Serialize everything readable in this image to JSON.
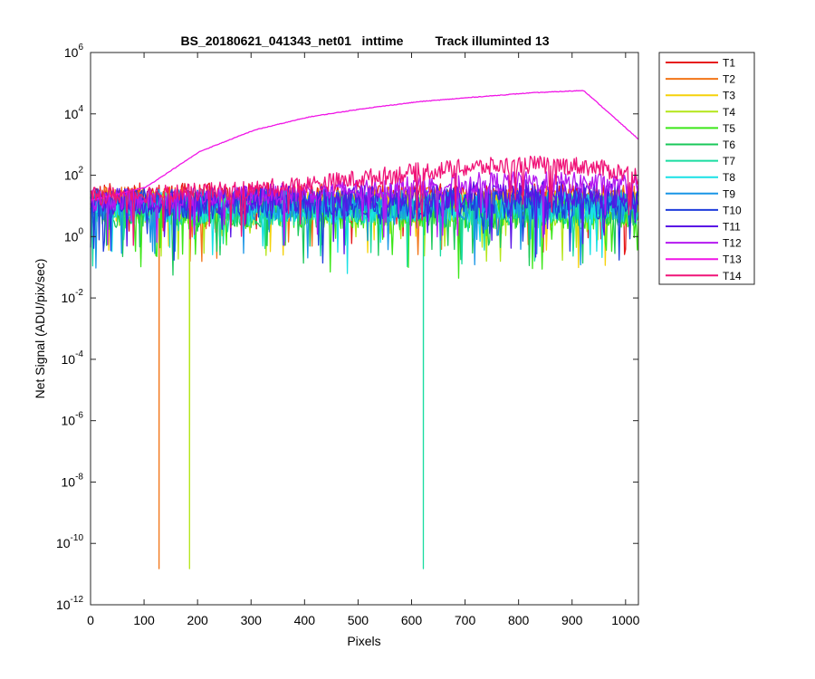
{
  "chart_data": {
    "type": "line",
    "title": "BS_20180621_041343_net01   inttime         Track illuminted 13",
    "xlabel": "Pixels",
    "ylabel": "Net Signal (ADU/pix/sec)",
    "xlim": [
      0,
      1024
    ],
    "ylim": [
      1e-12,
      1000000
    ],
    "y_scale": "log",
    "grid": false,
    "legend_placement": "outside-top-right",
    "x_ticks": [
      "0",
      "100",
      "200",
      "300",
      "400",
      "500",
      "600",
      "700",
      "800",
      "900",
      "1000"
    ],
    "y_ticks": [
      {
        "base": "10",
        "exp": "-12",
        "value": -12
      },
      {
        "base": "10",
        "exp": "-10",
        "value": -10
      },
      {
        "base": "10",
        "exp": "-8",
        "value": -8
      },
      {
        "base": "10",
        "exp": "-6",
        "value": -6
      },
      {
        "base": "10",
        "exp": "-4",
        "value": -4
      },
      {
        "base": "10",
        "exp": "-2",
        "value": -2
      },
      {
        "base": "10",
        "exp": "0",
        "value": 0
      },
      {
        "base": "10",
        "exp": "2",
        "value": 2
      },
      {
        "base": "10",
        "exp": "4",
        "value": 4
      },
      {
        "base": "10",
        "exp": "6",
        "value": 6
      }
    ],
    "series": [
      {
        "name": "T1",
        "color": "#e6191a",
        "center": [
          20,
          20,
          20,
          20,
          20,
          20,
          20,
          20,
          20,
          20,
          20
        ],
        "spread": 0.45,
        "dips": []
      },
      {
        "name": "T2",
        "color": "#f27416",
        "center": [
          14,
          14,
          14,
          14,
          14,
          14,
          14,
          14,
          14,
          14,
          14
        ],
        "spread": 0.5,
        "dips": [
          [
            128,
            1.5e-11
          ]
        ]
      },
      {
        "name": "T3",
        "color": "#f5d20a",
        "center": [
          10,
          10,
          10,
          10,
          10,
          10,
          10,
          10,
          10,
          10,
          10
        ],
        "spread": 0.5,
        "dips": []
      },
      {
        "name": "T4",
        "color": "#b4e619",
        "center": [
          8,
          8,
          8,
          8,
          8,
          8,
          8,
          8,
          8,
          8,
          8
        ],
        "spread": 0.55,
        "dips": [
          [
            185,
            1.5e-11
          ]
        ]
      },
      {
        "name": "T5",
        "color": "#3ce619",
        "center": [
          6,
          6,
          6,
          6,
          6,
          6,
          6,
          6,
          6,
          6,
          6
        ],
        "spread": 0.55,
        "dips": []
      },
      {
        "name": "T6",
        "color": "#19c85a",
        "center": [
          7,
          7,
          7,
          7,
          7,
          7,
          7,
          7,
          7,
          7,
          7
        ],
        "spread": 0.55,
        "dips": []
      },
      {
        "name": "T7",
        "color": "#19dca0",
        "center": [
          8,
          8,
          8,
          8,
          8,
          8,
          8,
          8,
          8,
          8,
          8
        ],
        "spread": 0.55,
        "dips": [
          [
            622,
            1.5e-11
          ]
        ]
      },
      {
        "name": "T8",
        "color": "#19e1e6",
        "center": [
          9,
          9,
          9,
          9,
          9,
          9,
          9,
          9,
          9,
          9,
          9
        ],
        "spread": 0.5,
        "dips": []
      },
      {
        "name": "T9",
        "color": "#1996e6",
        "center": [
          11,
          11,
          11,
          11,
          11,
          11,
          11,
          11,
          11,
          11,
          11
        ],
        "spread": 0.5,
        "dips": []
      },
      {
        "name": "T10",
        "color": "#1e3cdc",
        "center": [
          12,
          12,
          12,
          12,
          12,
          12,
          12,
          12,
          12,
          12,
          12
        ],
        "spread": 0.5,
        "dips": []
      },
      {
        "name": "T11",
        "color": "#5a14e6",
        "center": [
          14,
          14,
          15,
          16,
          18,
          20,
          22,
          24,
          25,
          24,
          20
        ],
        "spread": 0.45,
        "dips": []
      },
      {
        "name": "T12",
        "color": "#b419f0",
        "center": [
          15,
          16,
          18,
          22,
          28,
          35,
          45,
          55,
          60,
          55,
          45
        ],
        "spread": 0.35,
        "dips": []
      },
      {
        "name": "T13",
        "color": "#f014e6",
        "center": [
          15,
          40,
          600,
          3000,
          8000,
          15000,
          25000,
          35000,
          48000,
          58000,
          1500
        ],
        "spread": 0,
        "dips": []
      },
      {
        "name": "T14",
        "color": "#f01478",
        "center": [
          20,
          25,
          28,
          35,
          50,
          80,
          130,
          180,
          220,
          200,
          100
        ],
        "spread": 0.3,
        "dips": []
      }
    ]
  }
}
